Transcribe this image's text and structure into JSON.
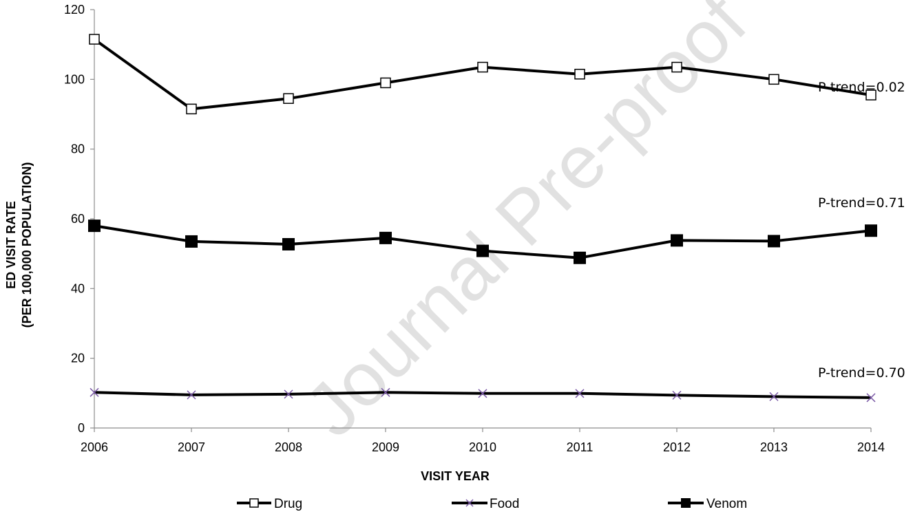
{
  "watermark": "Journal Pre-proof",
  "chart_data": {
    "type": "line",
    "x": [
      2006,
      2007,
      2008,
      2009,
      2010,
      2011,
      2012,
      2013,
      2014
    ],
    "series": [
      {
        "name": "Drug",
        "marker": "open-square",
        "color": "#000000",
        "values": [
          111.5,
          91.5,
          94.5,
          99,
          103.5,
          101.5,
          103.5,
          100,
          95.5
        ]
      },
      {
        "name": "Food",
        "marker": "x",
        "color": "#000000",
        "marker_color": "#7b5aa6",
        "values": [
          10.2,
          9.5,
          9.7,
          10.2,
          9.9,
          9.9,
          9.4,
          9.0,
          8.7
        ]
      },
      {
        "name": "Venom",
        "marker": "filled-square",
        "color": "#000000",
        "values": [
          58,
          53.5,
          52.7,
          54.5,
          50.8,
          48.8,
          53.8,
          53.6,
          56.6
        ]
      }
    ],
    "annotations": [
      "P-trend=0.02",
      "P-trend=0.71",
      "P-trend=0.70"
    ],
    "ylim": [
      0,
      120
    ],
    "yticks": [
      0,
      20,
      40,
      60,
      80,
      100,
      120
    ],
    "xlabel": "VISIT YEAR",
    "ylabel_line1": "ED VISIT RATE",
    "ylabel_line2": "(PER 100,000 POPULATION)",
    "legend_position": "bottom",
    "grid": false
  }
}
